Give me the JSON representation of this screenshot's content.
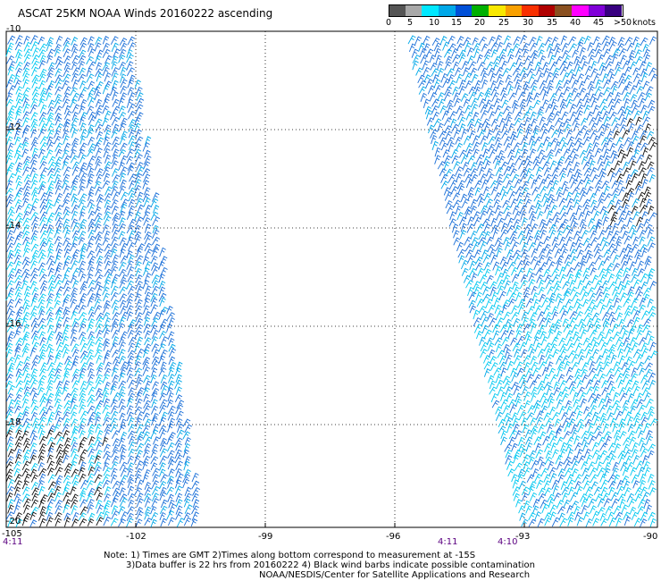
{
  "title": "ASCAT 25KM NOAA Winds 20160222 ascending",
  "colorbar": {
    "unit": "knots",
    "ticks": [
      "0",
      "5",
      "10",
      "15",
      "20",
      "25",
      "30",
      "35",
      "40",
      "45",
      ">50"
    ],
    "colors": [
      "#555555",
      "#a8a8a8",
      "#00e8ff",
      "#00a8e8",
      "#0050d8",
      "#00b000",
      "#f8e800",
      "#f8a000",
      "#f83000",
      "#b00000",
      "#8a5020",
      "#ff00ff",
      "#8000d8",
      "#380080"
    ]
  },
  "axes": {
    "y_labels": [
      "-10",
      "-12",
      "-14",
      "-16",
      "-18",
      "-20"
    ],
    "x_labels": [
      "-105",
      "-102",
      "-99",
      "-96",
      "-93",
      "-90"
    ]
  },
  "times": [
    "4:11",
    "4:11",
    "4:10"
  ],
  "notes": [
    "Note: 1) Times are GMT 2)Times along bottom correspond to measurement at -15S",
    "3)Data buffer is 22 hrs from 20160222 4) Black wind barbs indicate possible contamination",
    "NOAA/NESDIS/Center for Satellite Applications and Research"
  ]
}
